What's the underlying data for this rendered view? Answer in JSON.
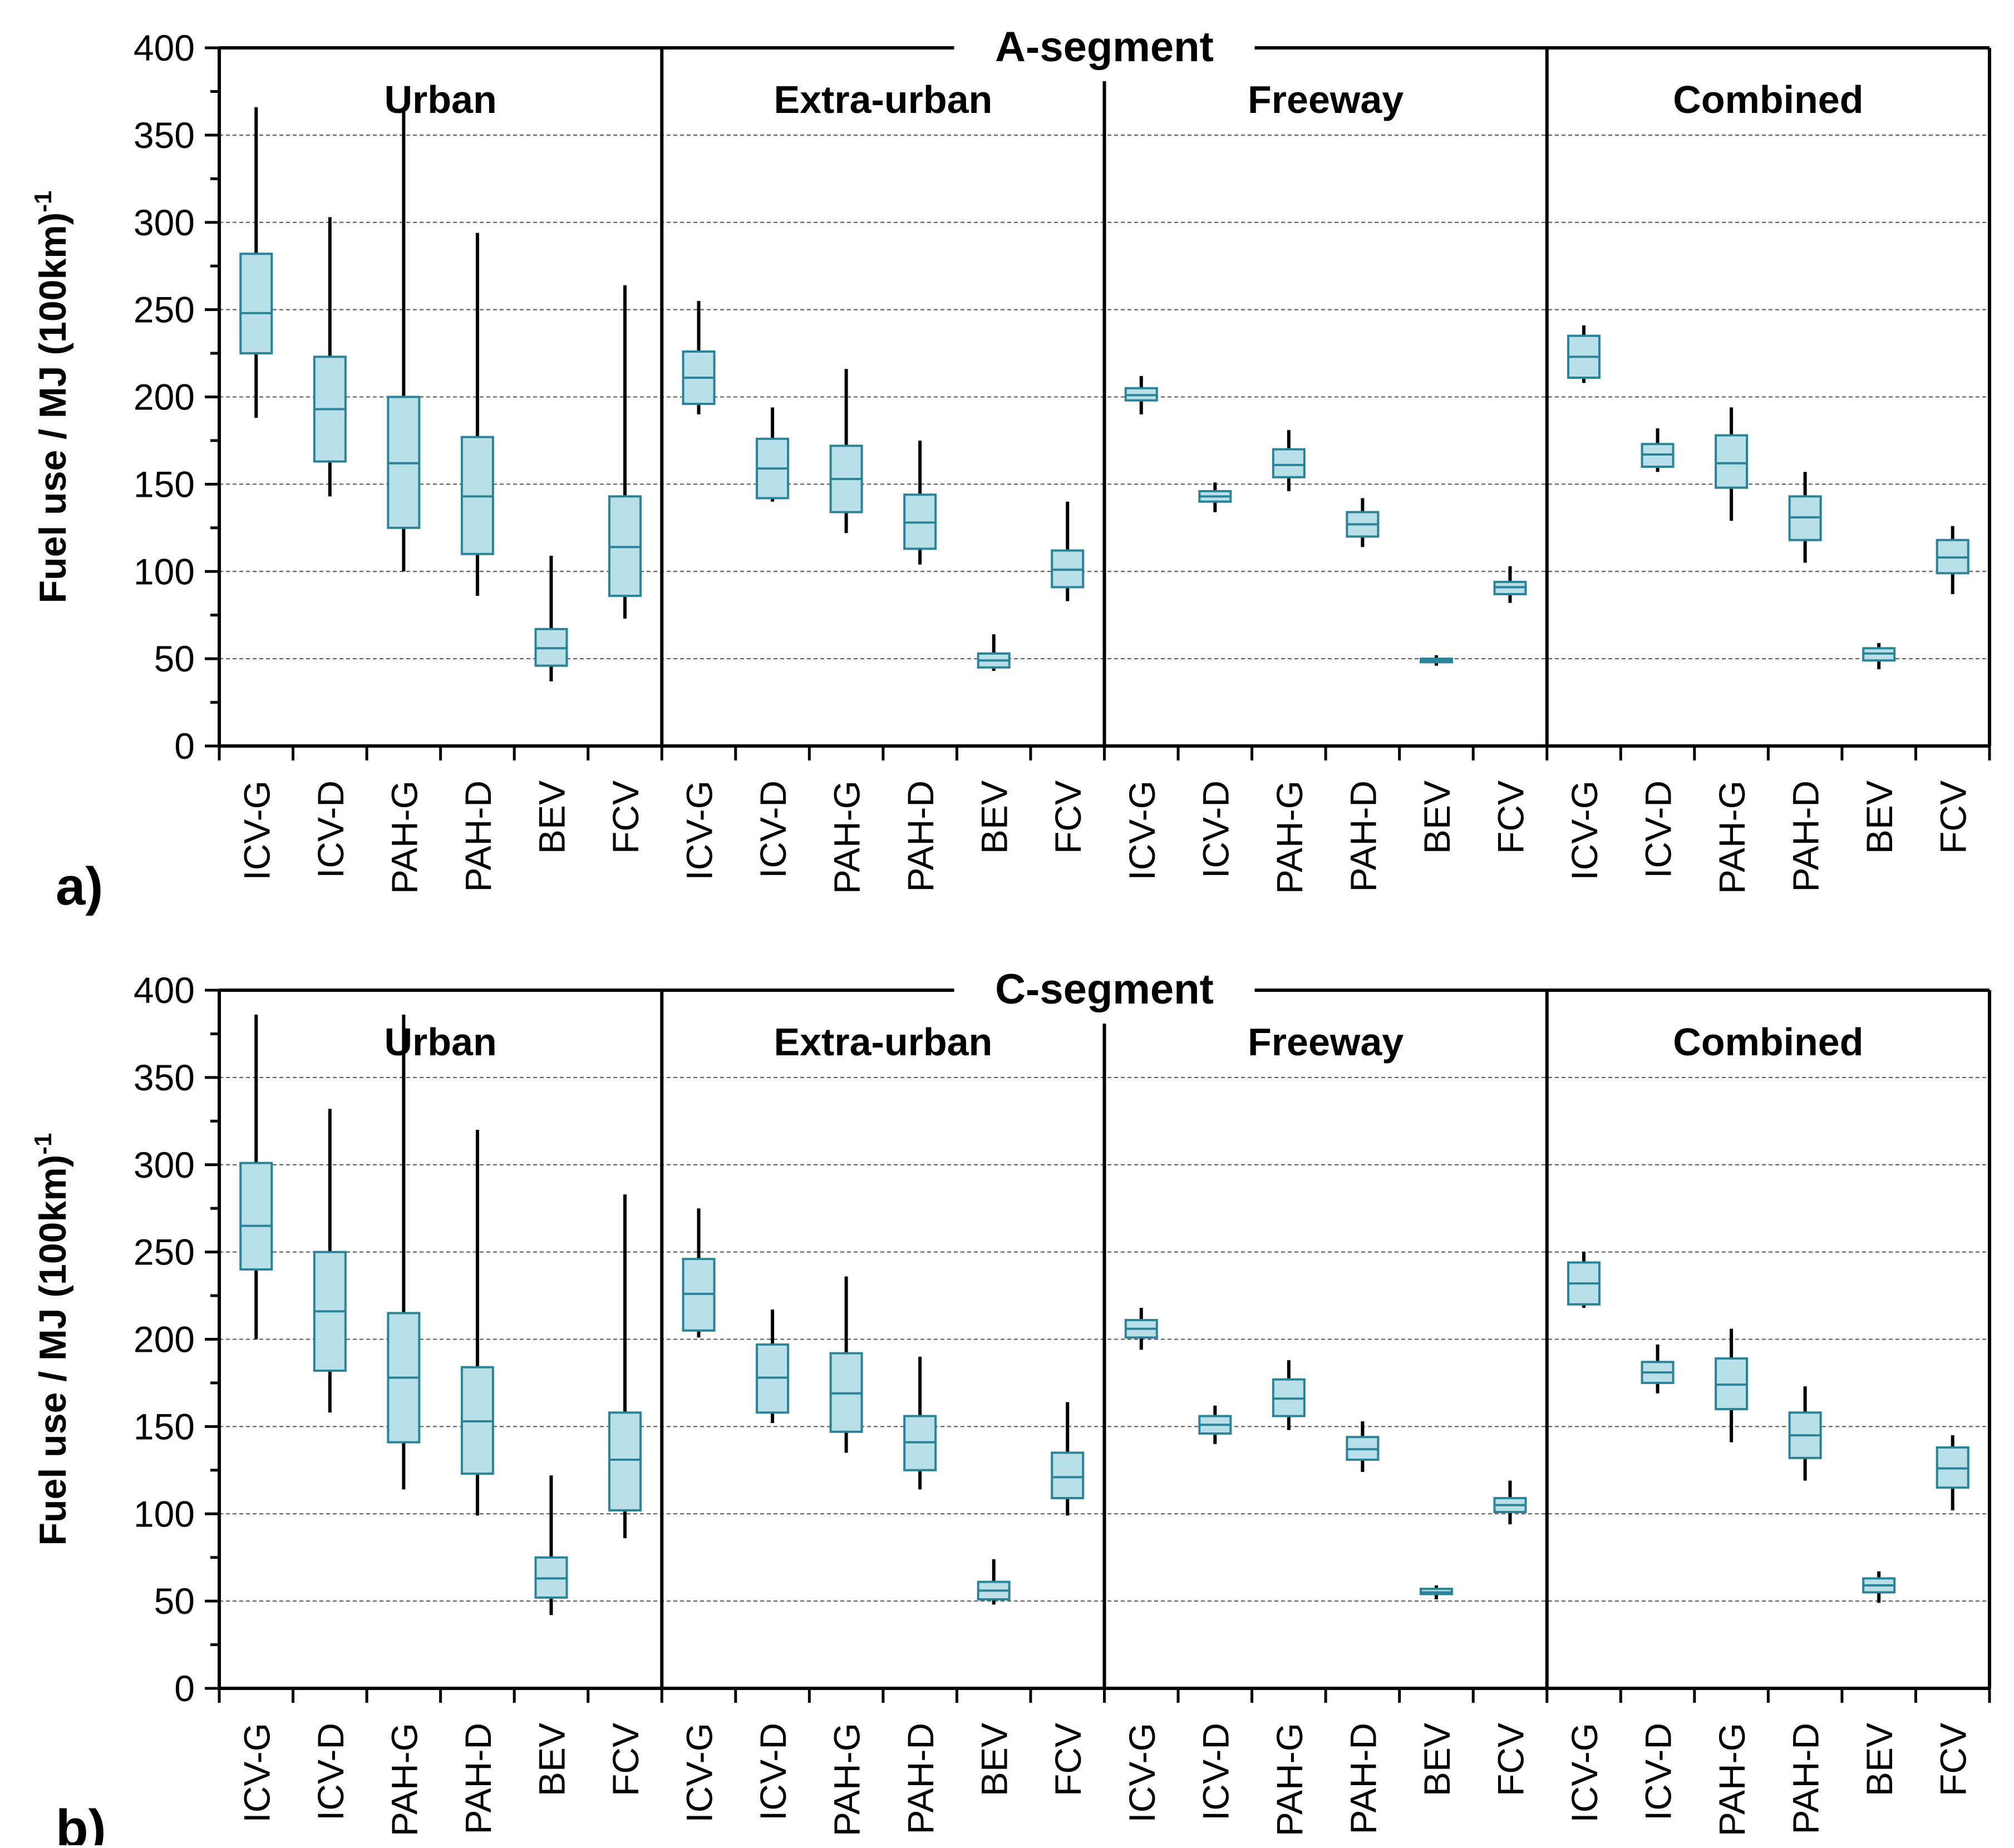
{
  "colors": {
    "box_fill": "#b9dfe9",
    "box_stroke": "#2a8396",
    "whisker": "#000000",
    "grid": "#555555",
    "axis": "#000000"
  },
  "chart_data": [
    {
      "type": "box",
      "panel_label": "a)",
      "title": "A-segment",
      "ylabel": "Fuel use / MJ (100km)",
      "ylabel_sup": "-1",
      "ylim": [
        0,
        400
      ],
      "yticks": [
        "0",
        "50",
        "100",
        "150",
        "200",
        "250",
        "300",
        "350",
        "400"
      ],
      "categories": [
        "ICV-G",
        "ICV-D",
        "PAH-G",
        "PAH-D",
        "BEV",
        "FCV"
      ],
      "groups": [
        {
          "name": "Urban",
          "boxes": [
            {
              "min": 188,
              "q1": 225,
              "median": 248,
              "q3": 282,
              "max": 366
            },
            {
              "min": 143,
              "q1": 163,
              "median": 193,
              "q3": 223,
              "max": 303
            },
            {
              "min": 100,
              "q1": 125,
              "median": 162,
              "q3": 200,
              "max": 364
            },
            {
              "min": 86,
              "q1": 110,
              "median": 143,
              "q3": 177,
              "max": 294
            },
            {
              "min": 37,
              "q1": 46,
              "median": 56,
              "q3": 67,
              "max": 109
            },
            {
              "min": 73,
              "q1": 86,
              "median": 114,
              "q3": 143,
              "max": 264
            }
          ]
        },
        {
          "name": "Extra-urban",
          "boxes": [
            {
              "min": 190,
              "q1": 196,
              "median": 211,
              "q3": 226,
              "max": 255
            },
            {
              "min": 140,
              "q1": 142,
              "median": 159,
              "q3": 176,
              "max": 194
            },
            {
              "min": 122,
              "q1": 134,
              "median": 153,
              "q3": 172,
              "max": 216
            },
            {
              "min": 104,
              "q1": 113,
              "median": 128,
              "q3": 144,
              "max": 175
            },
            {
              "min": 43,
              "q1": 45,
              "median": 49,
              "q3": 53,
              "max": 64
            },
            {
              "min": 83,
              "q1": 91,
              "median": 101,
              "q3": 112,
              "max": 140
            }
          ]
        },
        {
          "name": "Freeway",
          "boxes": [
            {
              "min": 190,
              "q1": 198,
              "median": 201,
              "q3": 205,
              "max": 212
            },
            {
              "min": 134,
              "q1": 140,
              "median": 143,
              "q3": 146,
              "max": 151
            },
            {
              "min": 146,
              "q1": 154,
              "median": 161,
              "q3": 170,
              "max": 181
            },
            {
              "min": 114,
              "q1": 120,
              "median": 127,
              "q3": 134,
              "max": 142
            },
            {
              "min": 46,
              "q1": 48,
              "median": 49,
              "q3": 50,
              "max": 52
            },
            {
              "min": 82,
              "q1": 87,
              "median": 91,
              "q3": 94,
              "max": 103
            }
          ]
        },
        {
          "name": "Combined",
          "boxes": [
            {
              "min": 208,
              "q1": 211,
              "median": 223,
              "q3": 235,
              "max": 241
            },
            {
              "min": 157,
              "q1": 160,
              "median": 167,
              "q3": 173,
              "max": 182
            },
            {
              "min": 129,
              "q1": 148,
              "median": 162,
              "q3": 178,
              "max": 194
            },
            {
              "min": 105,
              "q1": 118,
              "median": 131,
              "q3": 143,
              "max": 157
            },
            {
              "min": 44,
              "q1": 49,
              "median": 53,
              "q3": 56,
              "max": 59
            },
            {
              "min": 87,
              "q1": 99,
              "median": 108,
              "q3": 118,
              "max": 126
            }
          ]
        }
      ]
    },
    {
      "type": "box",
      "panel_label": "b)",
      "title": "C-segment",
      "ylabel": "Fuel use / MJ (100km)",
      "ylabel_sup": "-1",
      "ylim": [
        0,
        400
      ],
      "yticks": [
        "0",
        "50",
        "100",
        "150",
        "200",
        "250",
        "300",
        "350",
        "400"
      ],
      "categories": [
        "ICV-G",
        "ICV-D",
        "PAH-G",
        "PAH-D",
        "BEV",
        "FCV"
      ],
      "groups": [
        {
          "name": "Urban",
          "boxes": [
            {
              "min": 200,
              "q1": 240,
              "median": 265,
              "q3": 301,
              "max": 386
            },
            {
              "min": 158,
              "q1": 182,
              "median": 216,
              "q3": 250,
              "max": 332
            },
            {
              "min": 114,
              "q1": 141,
              "median": 178,
              "q3": 215,
              "max": 386
            },
            {
              "min": 99,
              "q1": 123,
              "median": 153,
              "q3": 184,
              "max": 320
            },
            {
              "min": 42,
              "q1": 52,
              "median": 63,
              "q3": 75,
              "max": 122
            },
            {
              "min": 86,
              "q1": 102,
              "median": 131,
              "q3": 158,
              "max": 283
            }
          ]
        },
        {
          "name": "Extra-urban",
          "boxes": [
            {
              "min": 201,
              "q1": 205,
              "median": 226,
              "q3": 246,
              "max": 275
            },
            {
              "min": 152,
              "q1": 158,
              "median": 178,
              "q3": 197,
              "max": 217
            },
            {
              "min": 135,
              "q1": 147,
              "median": 169,
              "q3": 192,
              "max": 236
            },
            {
              "min": 114,
              "q1": 125,
              "median": 141,
              "q3": 156,
              "max": 190
            },
            {
              "min": 48,
              "q1": 51,
              "median": 56,
              "q3": 61,
              "max": 74
            },
            {
              "min": 99,
              "q1": 109,
              "median": 121,
              "q3": 135,
              "max": 164
            }
          ]
        },
        {
          "name": "Freeway",
          "boxes": [
            {
              "min": 194,
              "q1": 201,
              "median": 206,
              "q3": 211,
              "max": 218
            },
            {
              "min": 140,
              "q1": 146,
              "median": 151,
              "q3": 156,
              "max": 162
            },
            {
              "min": 148,
              "q1": 156,
              "median": 166,
              "q3": 177,
              "max": 188
            },
            {
              "min": 124,
              "q1": 131,
              "median": 137,
              "q3": 144,
              "max": 153
            },
            {
              "min": 51,
              "q1": 54,
              "median": 55,
              "q3": 57,
              "max": 59
            },
            {
              "min": 94,
              "q1": 101,
              "median": 105,
              "q3": 109,
              "max": 119
            }
          ]
        },
        {
          "name": "Combined",
          "boxes": [
            {
              "min": 218,
              "q1": 220,
              "median": 232,
              "q3": 244,
              "max": 250
            },
            {
              "min": 169,
              "q1": 175,
              "median": 181,
              "q3": 187,
              "max": 197
            },
            {
              "min": 141,
              "q1": 160,
              "median": 174,
              "q3": 189,
              "max": 206
            },
            {
              "min": 119,
              "q1": 132,
              "median": 145,
              "q3": 158,
              "max": 173
            },
            {
              "min": 49,
              "q1": 55,
              "median": 59,
              "q3": 63,
              "max": 67
            },
            {
              "min": 102,
              "q1": 115,
              "median": 126,
              "q3": 138,
              "max": 145
            }
          ]
        }
      ]
    }
  ]
}
